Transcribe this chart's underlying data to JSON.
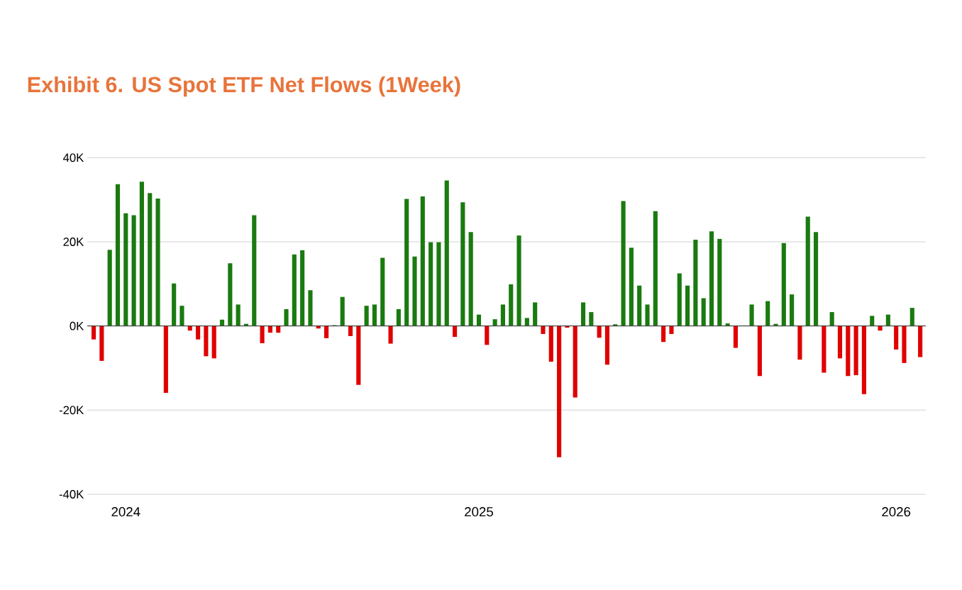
{
  "chart_data": {
    "type": "bar",
    "title": "Exhibit 6. US Spot ETF Net Flows (1Week)",
    "categories": [
      null,
      null,
      null,
      null,
      "2024",
      null,
      null,
      null,
      null,
      null,
      null,
      null,
      null,
      null,
      null,
      null,
      null,
      null,
      null,
      null,
      null,
      null,
      null,
      null,
      null,
      null,
      null,
      null,
      null,
      null,
      null,
      null,
      null,
      null,
      null,
      null,
      null,
      null,
      null,
      null,
      null,
      null,
      null,
      null,
      null,
      null,
      null,
      null,
      "2025",
      null,
      null,
      null,
      null,
      null,
      null,
      null,
      null,
      null,
      null,
      null,
      null,
      null,
      null,
      null,
      null,
      null,
      null,
      null,
      null,
      null,
      null,
      null,
      null,
      null,
      null,
      null,
      null,
      null,
      null,
      null,
      null,
      null,
      null,
      null,
      null,
      null,
      null,
      null,
      null,
      null,
      null,
      null,
      null,
      null,
      null,
      null,
      null,
      null,
      null,
      null,
      "2026",
      null,
      null,
      null
    ],
    "values": [
      -3200,
      -8300,
      18100,
      33700,
      26800,
      26300,
      34300,
      31600,
      30300,
      -15900,
      10100,
      4800,
      -1100,
      -3200,
      -7200,
      -7700,
      1500,
      14900,
      5100,
      500,
      26300,
      -4100,
      -1600,
      -1600,
      4000,
      17000,
      18000,
      8500,
      -600,
      -2900,
      200,
      6900,
      -2400,
      -14000,
      4800,
      5100,
      16200,
      -4200,
      4000,
      30200,
      16500,
      30800,
      19900,
      19900,
      34600,
      -2600,
      29400,
      22300,
      2700,
      -4500,
      1600,
      5100,
      9900,
      21500,
      1900,
      5600,
      -1900,
      -8500,
      -31200,
      -400,
      -17000,
      5600,
      3300,
      -2800,
      -9200,
      400,
      29700,
      18600,
      9600,
      5100,
      27300,
      -3800,
      -1900,
      12500,
      9600,
      20500,
      6600,
      22500,
      20700,
      600,
      -5200,
      100,
      5100,
      -11900,
      5900,
      500,
      19700,
      7500,
      -8000,
      26000,
      22300,
      -11100,
      3300,
      -7700,
      -11900,
      -11700,
      -16200,
      2400,
      -1100,
      2700,
      -5600,
      -8800,
      4300,
      -7400
    ],
    "colors": [
      "#e00000",
      "#e00000",
      "#1a7a10",
      "#1a7a10",
      "#1a7a10",
      "#1a7a10",
      "#1a7a10",
      "#1a7a10",
      "#1a7a10",
      "#e00000",
      "#1a7a10",
      "#1a7a10",
      "#e00000",
      "#e00000",
      "#e00000",
      "#e00000",
      "#1a7a10",
      "#1a7a10",
      "#1a7a10",
      "#1a7a10",
      "#1a7a10",
      "#e00000",
      "#e00000",
      "#e00000",
      "#1a7a10",
      "#1a7a10",
      "#1a7a10",
      "#1a7a10",
      "#e00000",
      "#e00000",
      "#1a7a10",
      "#1a7a10",
      "#e00000",
      "#e00000",
      "#1a7a10",
      "#1a7a10",
      "#1a7a10",
      "#e00000",
      "#1a7a10",
      "#1a7a10",
      "#1a7a10",
      "#1a7a10",
      "#1a7a10",
      "#1a7a10",
      "#1a7a10",
      "#e00000",
      "#1a7a10",
      "#1a7a10",
      "#1a7a10",
      "#e00000",
      "#1a7a10",
      "#1a7a10",
      "#1a7a10",
      "#1a7a10",
      "#1a7a10",
      "#1a7a10",
      "#e00000",
      "#e00000",
      "#e00000",
      "#e00000",
      "#e00000",
      "#1a7a10",
      "#1a7a10",
      "#e00000",
      "#e00000",
      "#1a7a10",
      "#1a7a10",
      "#1a7a10",
      "#1a7a10",
      "#1a7a10",
      "#1a7a10",
      "#e00000",
      "#e00000",
      "#1a7a10",
      "#1a7a10",
      "#1a7a10",
      "#1a7a10",
      "#1a7a10",
      "#1a7a10",
      "#1a7a10",
      "#e00000",
      "#1a7a10",
      "#1a7a10",
      "#e00000",
      "#1a7a10",
      "#1a7a10",
      "#1a7a10",
      "#1a7a10",
      "#e00000",
      "#1a7a10",
      "#1a7a10",
      "#e00000",
      "#1a7a10",
      "#e00000",
      "#e00000",
      "#e00000",
      "#e00000",
      "#1a7a10",
      "#e00000",
      "#1a7a10",
      "#e00000",
      "#e00000",
      "#1a7a10",
      "#e00000"
    ],
    "ylim": [
      -40000,
      40000
    ],
    "yticks": [
      {
        "value": 40000,
        "label": "40K"
      },
      {
        "value": 20000,
        "label": "20K"
      },
      {
        "value": 0,
        "label": "0K"
      },
      {
        "value": -20000,
        "label": "-20K"
      },
      {
        "value": -40000,
        "label": "-40K"
      }
    ],
    "grid": "y"
  }
}
